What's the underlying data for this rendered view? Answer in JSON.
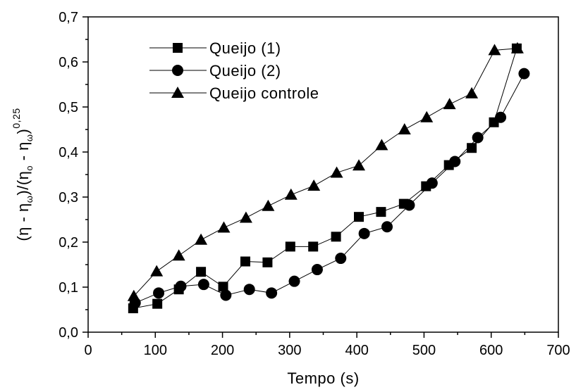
{
  "chart_data": {
    "type": "line",
    "xlabel": "Tempo (s)",
    "ylabel": {
      "parts": [
        "(η - η",
        "ω",
        ")/(η",
        "o",
        " - η",
        "ω",
        ")",
        "0,25"
      ]
    },
    "xlim": [
      0,
      700
    ],
    "ylim": [
      0,
      0.7
    ],
    "x_ticks": [
      0,
      100,
      200,
      300,
      400,
      500,
      600,
      700
    ],
    "x_tick_labels": [
      "0",
      "100",
      "200",
      "300",
      "400",
      "500",
      "600",
      "700"
    ],
    "y_ticks": [
      0,
      0.1,
      0.2,
      0.3,
      0.4,
      0.5,
      0.6,
      0.7
    ],
    "y_tick_labels": [
      "0,0",
      "0,1",
      "0,2",
      "0,3",
      "0,4",
      "0,5",
      "0,6",
      "0,7"
    ],
    "grid": false,
    "legend_position": "top-left",
    "series": [
      {
        "name": "Queijo (1)",
        "marker": "square",
        "points": [
          [
            67,
            0.053
          ],
          [
            103,
            0.063
          ],
          [
            135,
            0.095
          ],
          [
            168,
            0.134
          ],
          [
            201,
            0.101
          ],
          [
            234,
            0.157
          ],
          [
            267,
            0.155
          ],
          [
            301,
            0.19
          ],
          [
            335,
            0.19
          ],
          [
            369,
            0.212
          ],
          [
            403,
            0.256
          ],
          [
            436,
            0.267
          ],
          [
            470,
            0.285
          ],
          [
            503,
            0.324
          ],
          [
            537,
            0.371
          ],
          [
            571,
            0.409
          ],
          [
            604,
            0.466
          ],
          [
            638,
            0.63
          ]
        ]
      },
      {
        "name": "Queijo (2)",
        "marker": "circle",
        "points": [
          [
            70,
            0.065
          ],
          [
            105,
            0.087
          ],
          [
            138,
            0.102
          ],
          [
            172,
            0.106
          ],
          [
            205,
            0.082
          ],
          [
            240,
            0.095
          ],
          [
            273,
            0.087
          ],
          [
            307,
            0.113
          ],
          [
            341,
            0.139
          ],
          [
            376,
            0.164
          ],
          [
            411,
            0.219
          ],
          [
            445,
            0.234
          ],
          [
            478,
            0.282
          ],
          [
            512,
            0.331
          ],
          [
            546,
            0.379
          ],
          [
            580,
            0.432
          ],
          [
            614,
            0.477
          ],
          [
            649,
            0.574
          ]
        ]
      },
      {
        "name": "Queijo controle",
        "marker": "triangle",
        "points": [
          [
            68,
            0.08
          ],
          [
            102,
            0.135
          ],
          [
            135,
            0.17
          ],
          [
            168,
            0.205
          ],
          [
            202,
            0.232
          ],
          [
            235,
            0.254
          ],
          [
            268,
            0.28
          ],
          [
            302,
            0.305
          ],
          [
            336,
            0.325
          ],
          [
            370,
            0.354
          ],
          [
            403,
            0.37
          ],
          [
            437,
            0.415
          ],
          [
            471,
            0.45
          ],
          [
            504,
            0.477
          ],
          [
            538,
            0.506
          ],
          [
            571,
            0.53
          ],
          [
            605,
            0.626
          ],
          [
            639,
            0.63
          ]
        ]
      }
    ]
  }
}
